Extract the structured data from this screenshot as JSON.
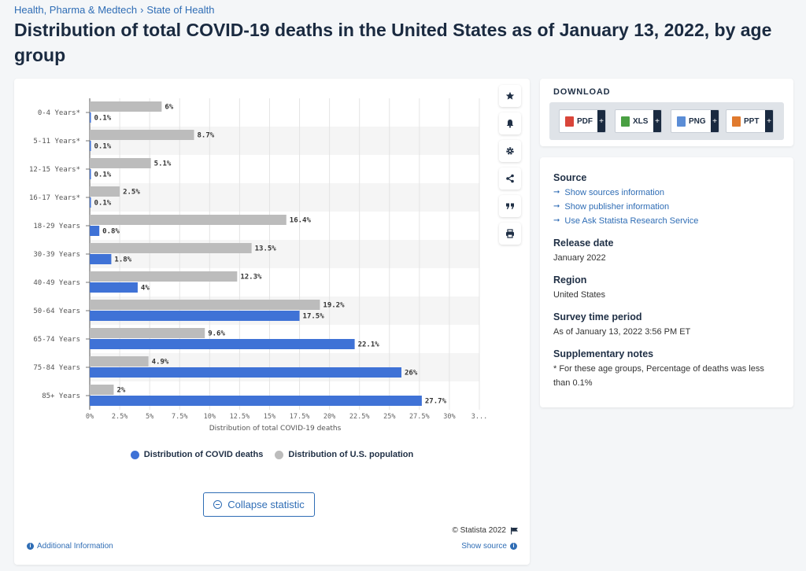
{
  "breadcrumb": {
    "parent": "Health, Pharma & Medtech",
    "separator": "›",
    "current": "State of Health"
  },
  "title": "Distribution of total COVID-19 deaths in the United States as of January 13, 2022, by age group",
  "tools": [
    "star-icon",
    "bell-icon",
    "gear-icon",
    "share-icon",
    "quote-icon",
    "print-icon"
  ],
  "chart_data": {
    "type": "bar",
    "orientation": "horizontal",
    "categories": [
      "0-4 Years*",
      "5-11 Years*",
      "12-15 Years*",
      "16-17 Years*",
      "18-29 Years",
      "30-39 Years",
      "40-49 Years",
      "50-64 Years",
      "65-74 Years",
      "75-84 Years",
      "85+ Years"
    ],
    "series": [
      {
        "name": "Distribution of U.S. population",
        "color": "#bcbcbc",
        "values": [
          6,
          8.7,
          5.1,
          2.5,
          16.4,
          13.5,
          12.3,
          19.2,
          9.6,
          4.9,
          2
        ],
        "labels": [
          "6%",
          "8.7%",
          "5.1%",
          "2.5%",
          "16.4%",
          "13.5%",
          "12.3%",
          "19.2%",
          "9.6%",
          "4.9%",
          "2%"
        ]
      },
      {
        "name": "Distribution of COVID deaths",
        "color": "#3f72d6",
        "values": [
          0.1,
          0.1,
          0.1,
          0.1,
          0.8,
          1.8,
          4,
          17.5,
          22.1,
          26,
          27.7
        ],
        "labels": [
          "0.1%",
          "0.1%",
          "0.1%",
          "0.1%",
          "0.8%",
          "1.8%",
          "4%",
          "17.5%",
          "22.1%",
          "26%",
          "27.7%"
        ]
      }
    ],
    "xlim": [
      0,
      32.5
    ],
    "xticks": [
      "0%",
      "2.5%",
      "5%",
      "7.5%",
      "10%",
      "12.5%",
      "15%",
      "17.5%",
      "20%",
      "22.5%",
      "25%",
      "27.5%",
      "30%",
      "3..."
    ],
    "xlabel": "Distribution of total COVID-19 deaths",
    "ylabel": "",
    "grid": true,
    "legend": [
      {
        "label": "Distribution of COVID deaths",
        "color": "#3f72d6"
      },
      {
        "label": "Distribution of U.S. population",
        "color": "#bcbcbc"
      }
    ],
    "legend_position": "bottom"
  },
  "collapse_label": "Collapse statistic",
  "copyright": "© Statista 2022",
  "additional_info": "Additional Information",
  "show_source": "Show source",
  "download": {
    "title": "DOWNLOAD",
    "buttons": [
      {
        "label": "PDF",
        "color": "#d9453a"
      },
      {
        "label": "XLS",
        "color": "#4aa043"
      },
      {
        "label": "PNG",
        "color": "#5b8dd6"
      },
      {
        "label": "PPT",
        "color": "#e07a2e"
      }
    ],
    "plus": "+"
  },
  "meta": {
    "source_title": "Source",
    "source_links": [
      "Show sources information",
      "Show publisher information",
      "Use Ask Statista Research Service"
    ],
    "release_title": "Release date",
    "release_value": "January 2022",
    "region_title": "Region",
    "region_value": "United States",
    "survey_title": "Survey time period",
    "survey_value": "As of January 13, 2022 3:56 PM ET",
    "notes_title": "Supplementary notes",
    "notes_value": "* For these age groups, Percentage of deaths was less than 0.1%"
  }
}
